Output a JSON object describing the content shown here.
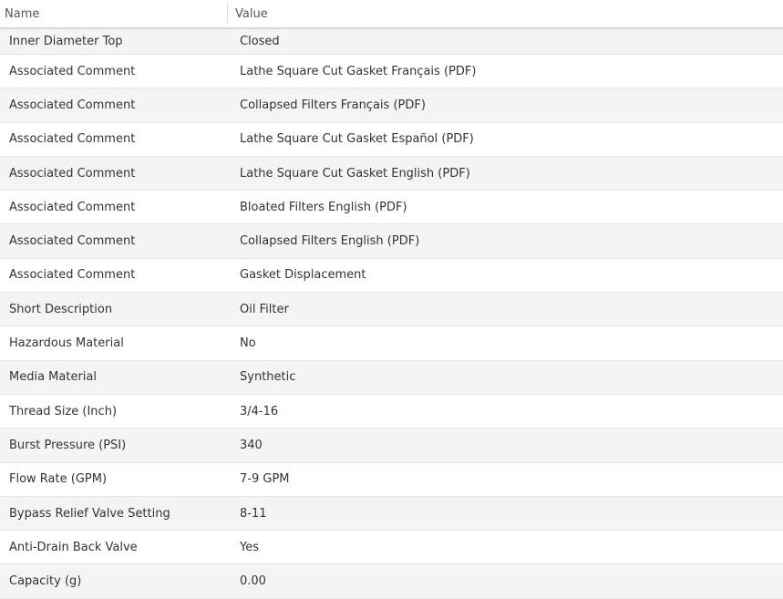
{
  "columns": {
    "name": "Name",
    "value": "Value"
  },
  "rows": [
    {
      "name": "Inner Diameter Top",
      "value": "Closed"
    },
    {
      "name": "Associated Comment",
      "value": "Lathe Square Cut Gasket Français (PDF)"
    },
    {
      "name": "Associated Comment",
      "value": "Collapsed Filters Français (PDF)"
    },
    {
      "name": "Associated Comment",
      "value": "Lathe Square Cut Gasket Español (PDF)"
    },
    {
      "name": "Associated Comment",
      "value": "Lathe Square Cut Gasket English (PDF)"
    },
    {
      "name": "Associated Comment",
      "value": "Bloated Filters English (PDF)"
    },
    {
      "name": "Associated Comment",
      "value": "Collapsed Filters English (PDF)"
    },
    {
      "name": "Associated Comment",
      "value": "Gasket Displacement"
    },
    {
      "name": "Short Description",
      "value": "Oil Filter"
    },
    {
      "name": "Hazardous Material",
      "value": "No"
    },
    {
      "name": "Media Material",
      "value": "Synthetic"
    },
    {
      "name": "Thread Size (Inch)",
      "value": "3/4-16"
    },
    {
      "name": "Burst Pressure (PSI)",
      "value": "340"
    },
    {
      "name": "Flow Rate (GPM)",
      "value": "7-9 GPM"
    },
    {
      "name": "Bypass Relief Valve Setting",
      "value": "8-11"
    },
    {
      "name": "Anti-Drain Back Valve",
      "value": "Yes"
    },
    {
      "name": "Capacity (g)",
      "value": "0.00"
    }
  ]
}
